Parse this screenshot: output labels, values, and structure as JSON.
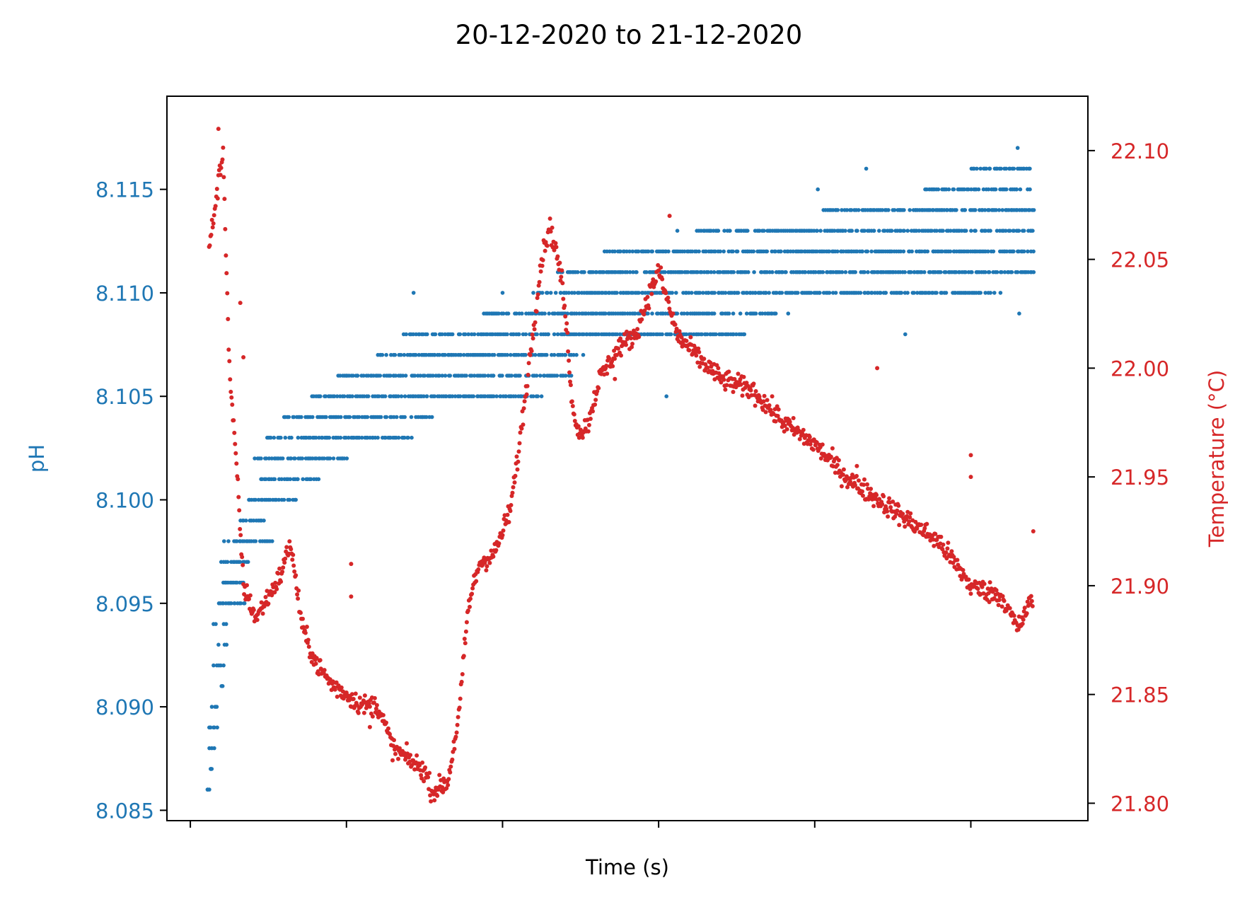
{
  "chart_data": {
    "type": "scatter",
    "title": "20-12-2020 to 21-12-2020",
    "xlabel": "Time (s)",
    "x_ticks_labeled": false,
    "x_tick_count": 6,
    "xlim": [
      -0.15,
      5.75
    ],
    "grid": false,
    "legend": "none",
    "y_left": {
      "label": "pH",
      "color": "#1f77b4",
      "ylim": [
        8.0845,
        8.1195
      ],
      "ticks": [
        8.085,
        8.09,
        8.095,
        8.1,
        8.105,
        8.11,
        8.115
      ],
      "tick_labels": [
        "8.085",
        "8.090",
        "8.095",
        "8.100",
        "8.105",
        "8.110",
        "8.115"
      ]
    },
    "y_right": {
      "label": "Temperature (°C)",
      "color": "#d62728",
      "ylim": [
        21.792,
        22.125
      ],
      "ticks": [
        21.8,
        21.85,
        21.9,
        21.95,
        22.0,
        22.05,
        22.1
      ],
      "tick_labels": [
        "21.80",
        "21.85",
        "21.90",
        "21.95",
        "22.00",
        "22.05",
        "22.10"
      ]
    },
    "series": [
      {
        "axis": "left",
        "color": "#1f77b4",
        "description": "pH readings quantized to 0.001; each band = [pH value, x start, x end]",
        "bands": [
          [
            8.086,
            0.11,
            0.12
          ],
          [
            8.087,
            0.13,
            0.14
          ],
          [
            8.088,
            0.12,
            0.15
          ],
          [
            8.089,
            0.12,
            0.17
          ],
          [
            8.09,
            0.14,
            0.17
          ],
          [
            8.091,
            0.19,
            0.21
          ],
          [
            8.092,
            0.15,
            0.21
          ],
          [
            8.093,
            0.18,
            0.23
          ],
          [
            8.094,
            0.15,
            0.23
          ],
          [
            8.095,
            0.18,
            0.35
          ],
          [
            8.096,
            0.21,
            0.35
          ],
          [
            8.097,
            0.2,
            0.37
          ],
          [
            8.098,
            0.22,
            0.52
          ],
          [
            8.099,
            0.32,
            0.47
          ],
          [
            8.1,
            0.36,
            0.68
          ],
          [
            8.101,
            0.45,
            0.82
          ],
          [
            8.102,
            0.4,
            1.0
          ],
          [
            8.103,
            0.49,
            1.42
          ],
          [
            8.104,
            0.6,
            1.55
          ],
          [
            8.105,
            0.78,
            2.25
          ],
          [
            8.106,
            0.95,
            2.45
          ],
          [
            8.107,
            1.2,
            2.53
          ],
          [
            8.108,
            1.37,
            3.55
          ],
          [
            8.109,
            1.88,
            3.75
          ],
          [
            8.11,
            2.2,
            5.15
          ],
          [
            8.111,
            2.35,
            5.4
          ],
          [
            8.112,
            2.65,
            5.4
          ],
          [
            8.113,
            3.25,
            5.4
          ],
          [
            8.114,
            4.05,
            5.4
          ],
          [
            8.115,
            4.7,
            5.4
          ],
          [
            8.116,
            5.0,
            5.38
          ]
        ],
        "outliers": [
          [
            0.11,
            8.086
          ],
          [
            0.13,
            8.087
          ],
          [
            0.2,
            8.091
          ],
          [
            1.07,
            8.106
          ],
          [
            1.43,
            8.11
          ],
          [
            1.94,
            8.109
          ],
          [
            2.0,
            8.11
          ],
          [
            3.05,
            8.105
          ],
          [
            3.12,
            8.113
          ],
          [
            3.53,
            8.113
          ],
          [
            3.83,
            8.109
          ],
          [
            4.02,
            8.115
          ],
          [
            4.33,
            8.116
          ],
          [
            4.58,
            8.108
          ],
          [
            4.96,
            8.113
          ],
          [
            5.05,
            8.11
          ],
          [
            5.12,
            8.116
          ],
          [
            5.19,
            8.11
          ],
          [
            5.3,
            8.117
          ],
          [
            5.31,
            8.109
          ],
          [
            5.35,
            8.111
          ],
          [
            4.38,
            8.113
          ],
          [
            2.9,
            8.112
          ],
          [
            2.75,
            8.112
          ]
        ]
      },
      {
        "axis": "right",
        "color": "#d62728",
        "description": "temperature trend [x, °C] with scatter noise",
        "trend": [
          [
            0.12,
            22.055
          ],
          [
            0.18,
            22.085
          ],
          [
            0.21,
            22.1
          ],
          [
            0.25,
            22.0
          ],
          [
            0.3,
            21.95
          ],
          [
            0.34,
            21.9
          ],
          [
            0.42,
            21.885
          ],
          [
            0.5,
            21.895
          ],
          [
            0.58,
            21.905
          ],
          [
            0.64,
            21.92
          ],
          [
            0.68,
            21.9
          ],
          [
            0.72,
            21.88
          ],
          [
            0.8,
            21.865
          ],
          [
            0.9,
            21.855
          ],
          [
            1.0,
            21.85
          ],
          [
            1.1,
            21.845
          ],
          [
            1.2,
            21.845
          ],
          [
            1.3,
            21.825
          ],
          [
            1.4,
            21.82
          ],
          [
            1.5,
            21.815
          ],
          [
            1.55,
            21.805
          ],
          [
            1.65,
            21.81
          ],
          [
            1.72,
            21.84
          ],
          [
            1.78,
            21.89
          ],
          [
            1.85,
            21.91
          ],
          [
            1.95,
            21.915
          ],
          [
            2.05,
            21.935
          ],
          [
            2.1,
            21.96
          ],
          [
            2.15,
            21.99
          ],
          [
            2.2,
            22.02
          ],
          [
            2.25,
            22.05
          ],
          [
            2.3,
            22.065
          ],
          [
            2.34,
            22.055
          ],
          [
            2.38,
            22.04
          ],
          [
            2.42,
            22.01
          ],
          [
            2.45,
            21.98
          ],
          [
            2.5,
            21.97
          ],
          [
            2.55,
            21.975
          ],
          [
            2.62,
            21.995
          ],
          [
            2.75,
            22.01
          ],
          [
            2.85,
            22.015
          ],
          [
            2.92,
            22.03
          ],
          [
            3.0,
            22.045
          ],
          [
            3.06,
            22.03
          ],
          [
            3.12,
            22.015
          ],
          [
            3.25,
            22.005
          ],
          [
            3.4,
            21.995
          ],
          [
            3.6,
            21.99
          ],
          [
            3.8,
            21.975
          ],
          [
            4.0,
            21.965
          ],
          [
            4.2,
            21.95
          ],
          [
            4.4,
            21.94
          ],
          [
            4.6,
            21.93
          ],
          [
            4.8,
            21.92
          ],
          [
            5.0,
            21.9
          ],
          [
            5.2,
            21.895
          ],
          [
            5.3,
            21.88
          ],
          [
            5.4,
            21.895
          ]
        ],
        "outliers": [
          [
            0.18,
            22.11
          ],
          [
            0.32,
            22.03
          ],
          [
            0.34,
            22.005
          ],
          [
            1.03,
            21.91
          ],
          [
            1.03,
            21.895
          ],
          [
            1.15,
            21.835
          ],
          [
            2.72,
            21.995
          ],
          [
            3.07,
            22.07
          ],
          [
            4.27,
            21.955
          ],
          [
            4.4,
            22.0
          ],
          [
            5.0,
            21.96
          ],
          [
            5.0,
            21.95
          ],
          [
            5.4,
            21.925
          ]
        ]
      }
    ]
  }
}
